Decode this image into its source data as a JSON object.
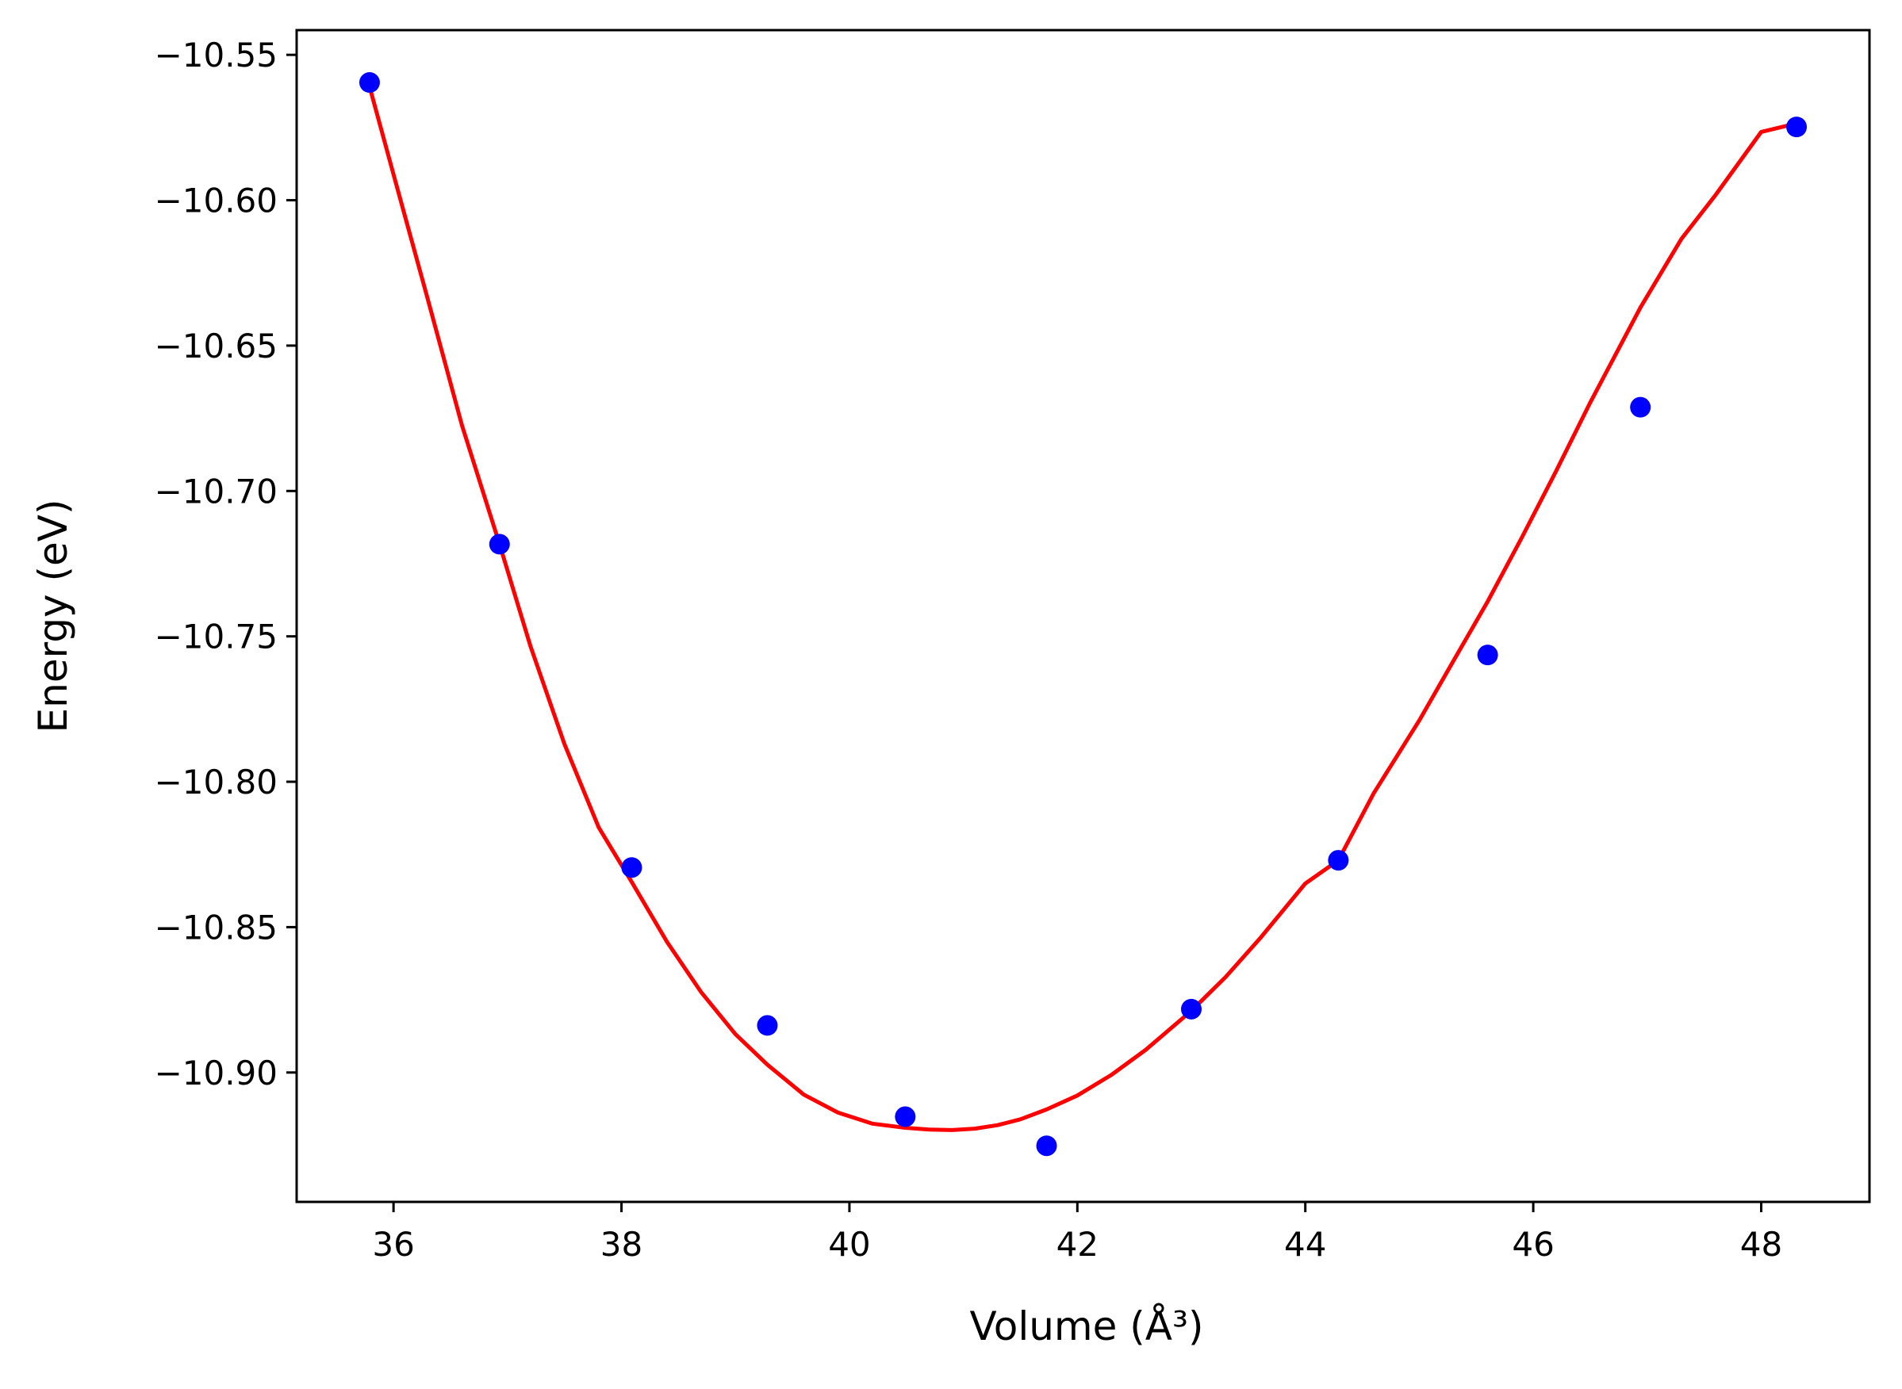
{
  "chart_data": {
    "type": "scatter",
    "xlabel": "Volume (Å³)",
    "ylabel": "Energy (eV)",
    "xlim": [
      35.15,
      48.95
    ],
    "ylim": [
      -10.9445,
      -10.5415
    ],
    "xticks": [
      36,
      38,
      40,
      42,
      44,
      46,
      48
    ],
    "xtick_labels": [
      "36",
      "38",
      "40",
      "42",
      "44",
      "46",
      "48"
    ],
    "yticks": [
      -10.55,
      -10.6,
      -10.65,
      -10.7,
      -10.75,
      -10.8,
      -10.85,
      -10.9
    ],
    "ytick_labels": [
      "−10.55",
      "−10.60",
      "−10.65",
      "−10.70",
      "−10.75",
      "−10.80",
      "−10.85",
      "−10.90"
    ],
    "grid": false,
    "series": [
      {
        "kind": "points",
        "color": "#0000ff",
        "x": [
          35.79,
          36.93,
          38.09,
          39.28,
          40.49,
          41.73,
          43.0,
          44.29,
          45.6,
          46.94,
          48.31
        ],
        "y": [
          -10.5595,
          -10.7183,
          -10.8295,
          -10.8838,
          -10.9152,
          -10.9252,
          -10.8782,
          -10.827,
          -10.7564,
          -10.6712,
          -10.5748
        ]
      },
      {
        "kind": "fit-line",
        "color": "#ff0000",
        "x": [
          35.79,
          36.0,
          36.3,
          36.6,
          36.93,
          37.2,
          37.5,
          37.8,
          38.09,
          38.4,
          38.7,
          39.0,
          39.28,
          39.6,
          39.9,
          40.2,
          40.49,
          40.7,
          40.9,
          41.1,
          41.3,
          41.5,
          41.73,
          42.0,
          42.3,
          42.6,
          43.0,
          43.3,
          43.6,
          44.0,
          44.29,
          44.6,
          45.0,
          45.3,
          45.6,
          45.9,
          46.2,
          46.5,
          46.94,
          47.3,
          47.6,
          48.0,
          48.31
        ],
        "y": [
          -10.561,
          -10.5911,
          -10.6339,
          -10.6774,
          -10.7183,
          -10.7532,
          -10.7871,
          -10.8157,
          -10.8345,
          -10.8551,
          -10.8724,
          -10.8868,
          -10.8973,
          -10.9076,
          -10.9138,
          -10.9176,
          -10.919,
          -10.9196,
          -10.9198,
          -10.9193,
          -10.9181,
          -10.9161,
          -10.9127,
          -10.9079,
          -10.9008,
          -10.8922,
          -10.8788,
          -10.8672,
          -10.854,
          -10.835,
          -10.827,
          -10.804,
          -10.7789,
          -10.7584,
          -10.738,
          -10.716,
          -10.6932,
          -10.6696,
          -10.6369,
          -10.6133,
          -10.5982,
          -10.5765,
          -10.5736
        ]
      }
    ]
  }
}
